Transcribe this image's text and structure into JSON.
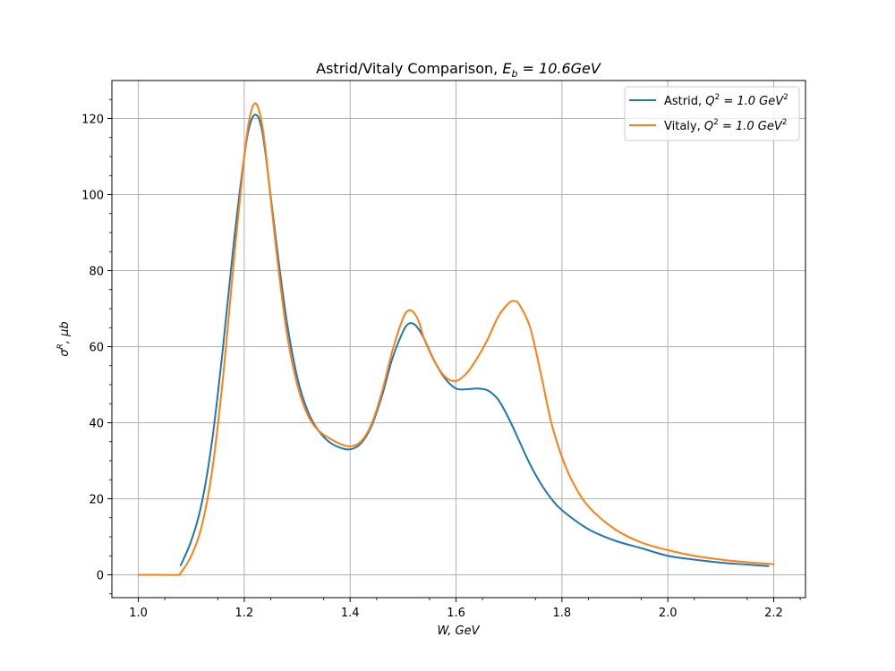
{
  "chart_data": {
    "type": "line",
    "title_prefix": "Astrid/Vitaly Comparison, ",
    "title_math_base": "E",
    "title_math_sub": "b",
    "title_math_rest": " = 10.6GeV",
    "xlabel": "W, GeV",
    "ylabel_base": "σ",
    "ylabel_sup": "R",
    "ylabel_rest": ", μb",
    "xlim": [
      0.95,
      2.26
    ],
    "ylim": [
      -6,
      130
    ],
    "xticks": [
      "1.0",
      "1.2",
      "1.4",
      "1.6",
      "1.8",
      "2.0",
      "2.2"
    ],
    "yticks": [
      "0",
      "20",
      "40",
      "60",
      "80",
      "100",
      "120"
    ],
    "grid": true,
    "legend_position": "top-right",
    "series": [
      {
        "name": "Astrid",
        "legend_prefix": "Astrid, ",
        "legend_math": "Q",
        "legend_sup": "2",
        "legend_rest": " = 1.0 GeV",
        "legend_sup2": "2",
        "color": "#1f77b4",
        "x": [
          1.08,
          1.1,
          1.12,
          1.14,
          1.16,
          1.18,
          1.2,
          1.21,
          1.22,
          1.23,
          1.24,
          1.26,
          1.28,
          1.3,
          1.32,
          1.34,
          1.36,
          1.38,
          1.4,
          1.42,
          1.44,
          1.46,
          1.48,
          1.5,
          1.51,
          1.52,
          1.53,
          1.54,
          1.56,
          1.58,
          1.6,
          1.62,
          1.64,
          1.66,
          1.68,
          1.7,
          1.72,
          1.74,
          1.76,
          1.78,
          1.8,
          1.85,
          1.9,
          1.95,
          2.0,
          2.05,
          2.1,
          2.15,
          2.19
        ],
        "y": [
          2.5,
          9,
          19,
          36,
          60,
          87,
          110,
          118,
          121,
          119,
          111,
          88,
          67,
          52,
          43,
          38,
          35,
          33.5,
          33,
          34.5,
          39,
          47,
          57,
          64,
          66,
          66,
          64.5,
          62,
          56,
          51.5,
          49,
          48.8,
          49,
          48.5,
          46,
          41,
          35,
          29,
          24,
          20,
          17,
          12,
          9,
          7,
          5,
          4,
          3.2,
          2.7,
          2.3
        ]
      },
      {
        "name": "Vitaly",
        "legend_prefix": "Vitaly, ",
        "legend_math": "Q",
        "legend_sup": "2",
        "legend_rest": " = 1.0 GeV",
        "legend_sup2": "2",
        "color": "#ff7f0e",
        "x": [
          1.0,
          1.04,
          1.075,
          1.08,
          1.1,
          1.12,
          1.14,
          1.16,
          1.18,
          1.2,
          1.21,
          1.22,
          1.23,
          1.24,
          1.26,
          1.28,
          1.3,
          1.32,
          1.34,
          1.36,
          1.38,
          1.4,
          1.42,
          1.44,
          1.46,
          1.48,
          1.5,
          1.51,
          1.52,
          1.53,
          1.54,
          1.56,
          1.58,
          1.6,
          1.62,
          1.64,
          1.66,
          1.68,
          1.7,
          1.71,
          1.72,
          1.74,
          1.76,
          1.78,
          1.8,
          1.82,
          1.85,
          1.9,
          1.95,
          2.0,
          2.05,
          2.1,
          2.15,
          2.2
        ],
        "y": [
          0,
          0,
          0,
          0.5,
          5,
          13,
          28,
          52,
          82,
          110,
          120,
          124,
          121,
          112,
          86,
          64,
          50,
          42,
          38,
          36,
          34.5,
          33.8,
          35,
          39.5,
          48,
          59,
          67.5,
          69.5,
          69,
          66.5,
          62,
          56,
          52,
          51,
          53,
          57,
          62,
          68,
          71.5,
          72,
          71,
          65,
          53,
          40,
          31,
          24.5,
          18,
          12,
          8.5,
          6.5,
          5,
          4,
          3.3,
          2.8
        ]
      }
    ]
  }
}
